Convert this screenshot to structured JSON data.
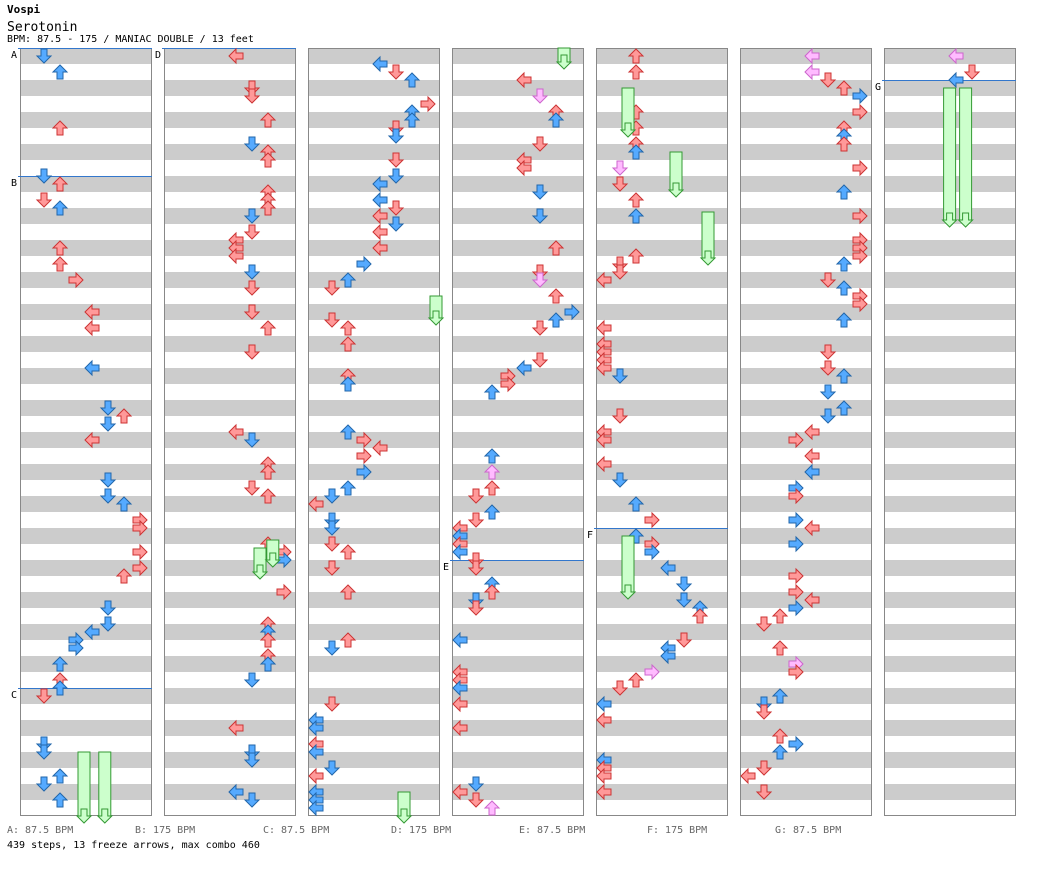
{
  "song": {
    "artist": "Vospi",
    "title": "Serotonin",
    "info": "BPM: 87.5 - 175 / MANIAC DOUBLE / 13 feet"
  },
  "sections": [
    {
      "letter": "A",
      "bpm_label": "A: 87.5 BPM"
    },
    {
      "letter": "B",
      "bpm_label": "B: 175 BPM"
    },
    {
      "letter": "C",
      "bpm_label": "C: 87.5 BPM"
    },
    {
      "letter": "D",
      "bpm_label": "D: 175 BPM"
    },
    {
      "letter": "E",
      "bpm_label": "E: 87.5 BPM"
    },
    {
      "letter": "F",
      "bpm_label": "F: 175 BPM"
    },
    {
      "letter": "G",
      "bpm_label": "G: 87.5 BPM"
    }
  ],
  "stats": "439 steps, 13 freeze arrows, max combo 460",
  "colors": {
    "stripe": "#cccccc",
    "red_arrow": "#ff9999",
    "blue_arrow": "#55aaff",
    "pink_arrow": "#ffbbff",
    "freeze": "#ccffcc",
    "marker_line": "#3377cc"
  },
  "arrow_types": [
    "left-arrow",
    "down-arrow",
    "up-arrow",
    "right-arrow"
  ]
}
